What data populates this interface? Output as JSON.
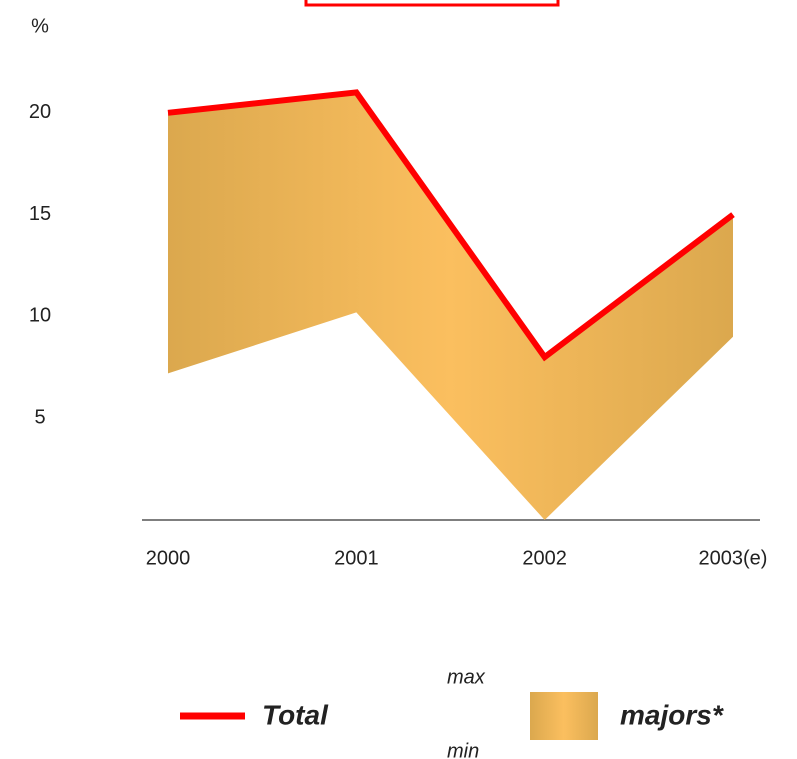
{
  "chart_data": {
    "type": "line",
    "y_label": "%",
    "categories": [
      "2000",
      "2001",
      "2002",
      "2003(e)"
    ],
    "series": [
      {
        "name": "Total",
        "color": "#ff0000",
        "values": [
          20,
          21,
          8,
          15
        ]
      }
    ],
    "band": {
      "name": "majors*",
      "upper_label": "max",
      "lower_label": "min",
      "color": "#fbbf5f",
      "edge_color": "#dba84e",
      "max": [
        20,
        21,
        8,
        15
      ],
      "min": [
        7.2,
        10.2,
        0,
        9
      ]
    },
    "ylim": [
      0,
      25
    ],
    "yticks": [
      5,
      10,
      15,
      20
    ]
  }
}
